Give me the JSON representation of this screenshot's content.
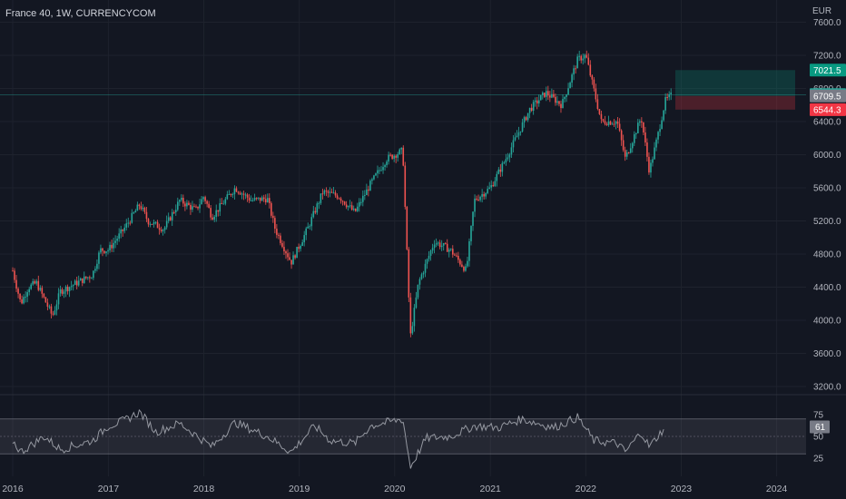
{
  "header": {
    "symbol": "France 40, 1W, CURRENCYCOM"
  },
  "colors": {
    "bg": "#131722",
    "up": "#26a69a",
    "down": "#ef5350",
    "grid": "#1e222d",
    "axis_text": "#b2b5be",
    "rsi_line": "#9598a1",
    "current_label": "#26a69a"
  },
  "chart_data": {
    "type": "candlestick",
    "currency": "EUR",
    "y_ticks": [
      3200,
      3600,
      4000,
      4400,
      4800,
      5200,
      5600,
      6000,
      6400,
      6800,
      7200,
      7600
    ],
    "x_labels": [
      "2016",
      "2017",
      "2018",
      "2019",
      "2020",
      "2021",
      "2022",
      "2023",
      "2024"
    ],
    "ylim": [
      3090,
      7700
    ],
    "price_path": [
      [
        "2016-01",
        4600
      ],
      [
        "2016-02",
        4200
      ],
      [
        "2016-03",
        4400
      ],
      [
        "2016-04",
        4450
      ],
      [
        "2016-06",
        4050
      ],
      [
        "2016-07",
        4350
      ],
      [
        "2016-09",
        4450
      ],
      [
        "2016-10",
        4500
      ],
      [
        "2016-11",
        4550
      ],
      [
        "2016-12",
        4850
      ],
      [
        "2017-01",
        4850
      ],
      [
        "2017-03",
        5100
      ],
      [
        "2017-05",
        5400
      ],
      [
        "2017-06",
        5200
      ],
      [
        "2017-08",
        5100
      ],
      [
        "2017-10",
        5450
      ],
      [
        "2017-12",
        5330
      ],
      [
        "2018-01",
        5500
      ],
      [
        "2018-02",
        5250
      ],
      [
        "2018-05",
        5600
      ],
      [
        "2018-07",
        5450
      ],
      [
        "2018-09",
        5470
      ],
      [
        "2018-10",
        5100
      ],
      [
        "2018-12",
        4700
      ],
      [
        "2019-02",
        5100
      ],
      [
        "2019-04",
        5550
      ],
      [
        "2019-06",
        5500
      ],
      [
        "2019-08",
        5300
      ],
      [
        "2019-10",
        5650
      ],
      [
        "2019-12",
        5950
      ],
      [
        "2020-02",
        6050
      ],
      [
        "2020-03",
        3800
      ],
      [
        "2020-04",
        4450
      ],
      [
        "2020-06",
        4950
      ],
      [
        "2020-08",
        4850
      ],
      [
        "2020-10",
        4600
      ],
      [
        "2020-11",
        5450
      ],
      [
        "2021-01",
        5600
      ],
      [
        "2021-03",
        5950
      ],
      [
        "2021-06",
        6550
      ],
      [
        "2021-08",
        6750
      ],
      [
        "2021-10",
        6600
      ],
      [
        "2021-12",
        7150
      ],
      [
        "2022-01",
        7200
      ],
      [
        "2022-03",
        6400
      ],
      [
        "2022-05",
        6400
      ],
      [
        "2022-06",
        5950
      ],
      [
        "2022-08",
        6450
      ],
      [
        "2022-09",
        5800
      ],
      [
        "2022-10",
        6200
      ],
      [
        "2022-11",
        6650
      ],
      [
        "2022-11-28",
        6725.6
      ]
    ],
    "position": {
      "target": 7021.5,
      "entry": 6709.5,
      "stop": 6544.3
    },
    "price_labels": [
      {
        "value": 7021.5,
        "text": "7021.5",
        "color": "#089981"
      },
      {
        "value": 6725.6,
        "text": "6725.6",
        "color": "#26a69a"
      },
      {
        "value": 6709.5,
        "text": "6709.5",
        "color": "#787b86"
      },
      {
        "value": 6544.3,
        "text": "6544.3",
        "color": "#f23645"
      }
    ],
    "rsi": {
      "ticks": [
        25,
        50,
        75
      ],
      "upper": 70,
      "lower": 30,
      "current": 61,
      "current_text": "61",
      "path": [
        [
          "2016-01",
          45
        ],
        [
          "2016-02",
          32
        ],
        [
          "2016-05",
          50
        ],
        [
          "2016-07",
          35
        ],
        [
          "2016-11",
          45
        ],
        [
          "2017-01",
          62
        ],
        [
          "2017-03",
          68
        ],
        [
          "2017-05",
          78
        ],
        [
          "2017-07",
          55
        ],
        [
          "2017-10",
          65
        ],
        [
          "2018-02",
          38
        ],
        [
          "2018-05",
          66
        ],
        [
          "2018-09",
          50
        ],
        [
          "2018-12",
          32
        ],
        [
          "2019-03",
          62
        ],
        [
          "2019-05",
          45
        ],
        [
          "2019-08",
          42
        ],
        [
          "2019-10",
          62
        ],
        [
          "2020-01",
          68
        ],
        [
          "2020-02",
          70
        ],
        [
          "2020-03",
          15
        ],
        [
          "2020-05",
          48
        ],
        [
          "2020-08",
          50
        ],
        [
          "2020-11",
          62
        ],
        [
          "2021-02",
          60
        ],
        [
          "2021-05",
          70
        ],
        [
          "2021-09",
          60
        ],
        [
          "2021-12",
          72
        ],
        [
          "2022-02",
          45
        ],
        [
          "2022-05",
          42
        ],
        [
          "2022-06",
          32
        ],
        [
          "2022-08",
          55
        ],
        [
          "2022-09",
          38
        ],
        [
          "2022-11",
          61
        ]
      ]
    }
  }
}
